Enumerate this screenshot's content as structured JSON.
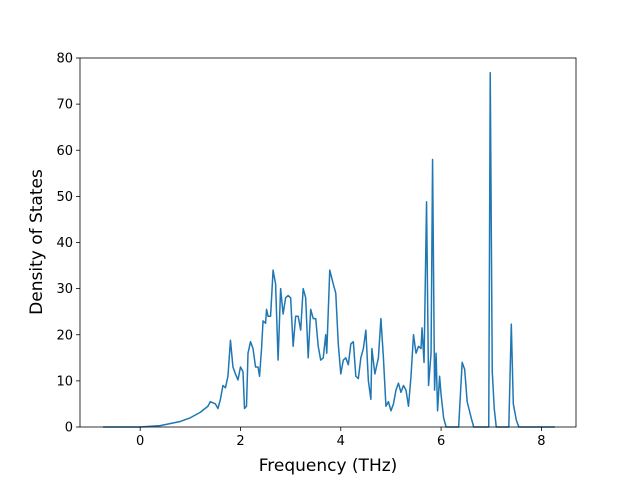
{
  "chart_data": {
    "type": "line",
    "x_label": "Frequency (THz)",
    "y_label": "Density of States",
    "xlim": [
      -1.2,
      8.69
    ],
    "ylim": [
      0,
      80
    ],
    "xticks": [
      0,
      2,
      4,
      6,
      8
    ],
    "yticks": [
      0,
      10,
      20,
      30,
      40,
      50,
      60,
      70,
      80
    ],
    "grid": false,
    "series": [
      {
        "color": "#1f77b4",
        "x": [
          -0.74,
          0,
          0.4,
          0.8,
          1.0,
          1.2,
          1.35,
          1.4,
          1.5,
          1.55,
          1.6,
          1.65,
          1.7,
          1.75,
          1.8,
          1.85,
          1.9,
          1.95,
          2.0,
          2.05,
          2.08,
          2.12,
          2.15,
          2.2,
          2.25,
          2.3,
          2.35,
          2.38,
          2.42,
          2.45,
          2.5,
          2.52,
          2.55,
          2.6,
          2.65,
          2.7,
          2.75,
          2.8,
          2.85,
          2.9,
          2.95,
          3.0,
          3.05,
          3.1,
          3.15,
          3.2,
          3.25,
          3.3,
          3.35,
          3.4,
          3.45,
          3.5,
          3.55,
          3.6,
          3.65,
          3.7,
          3.72,
          3.78,
          3.85,
          3.9,
          3.95,
          4.0,
          4.05,
          4.1,
          4.15,
          4.2,
          4.25,
          4.3,
          4.35,
          4.4,
          4.45,
          4.5,
          4.55,
          4.6,
          4.62,
          4.68,
          4.75,
          4.8,
          4.85,
          4.9,
          4.95,
          5.0,
          5.05,
          5.1,
          5.15,
          5.2,
          5.25,
          5.3,
          5.35,
          5.4,
          5.45,
          5.5,
          5.55,
          5.6,
          5.62,
          5.66,
          5.71,
          5.75,
          5.8,
          5.83,
          5.87,
          5.9,
          5.93,
          5.97,
          6.0,
          6.05,
          6.1,
          6.35,
          6.42,
          6.47,
          6.52,
          6.6,
          6.65,
          6.9,
          6.95,
          6.98,
          7.02,
          7.06,
          7.1,
          7.35,
          7.4,
          7.44,
          7.5,
          7.55,
          8.27
        ],
        "values": [
          0,
          0,
          0.3,
          1.2,
          2.0,
          3.2,
          4.5,
          5.5,
          5,
          4,
          6,
          9,
          8.5,
          11,
          18.8,
          13,
          11.5,
          10.2,
          13,
          12,
          4,
          4.5,
          16,
          18.5,
          17,
          13,
          13,
          11,
          17,
          23,
          22.5,
          25.5,
          24,
          24,
          34,
          31,
          14.5,
          30,
          24.5,
          28,
          28.5,
          28,
          17.5,
          24,
          24,
          21,
          30,
          28,
          15,
          25.5,
          23.5,
          23.5,
          17.5,
          14.5,
          15,
          20,
          16,
          34,
          31,
          29,
          18,
          11.5,
          14.5,
          15,
          13.5,
          18,
          18.5,
          11,
          10.5,
          15,
          17,
          21,
          10,
          6,
          17,
          11.5,
          15,
          23.5,
          15,
          4.5,
          5.5,
          3.5,
          5,
          8,
          9.5,
          7.5,
          9,
          8,
          4.5,
          11,
          20,
          16,
          17.5,
          17,
          21.5,
          14,
          48.8,
          9,
          16,
          58,
          8,
          16,
          3.5,
          11,
          7,
          2,
          0,
          0,
          14,
          12.5,
          5.5,
          2,
          0,
          0,
          0,
          76.8,
          12,
          4,
          0,
          0,
          22.3,
          5,
          1.5,
          0,
          0
        ]
      }
    ]
  }
}
